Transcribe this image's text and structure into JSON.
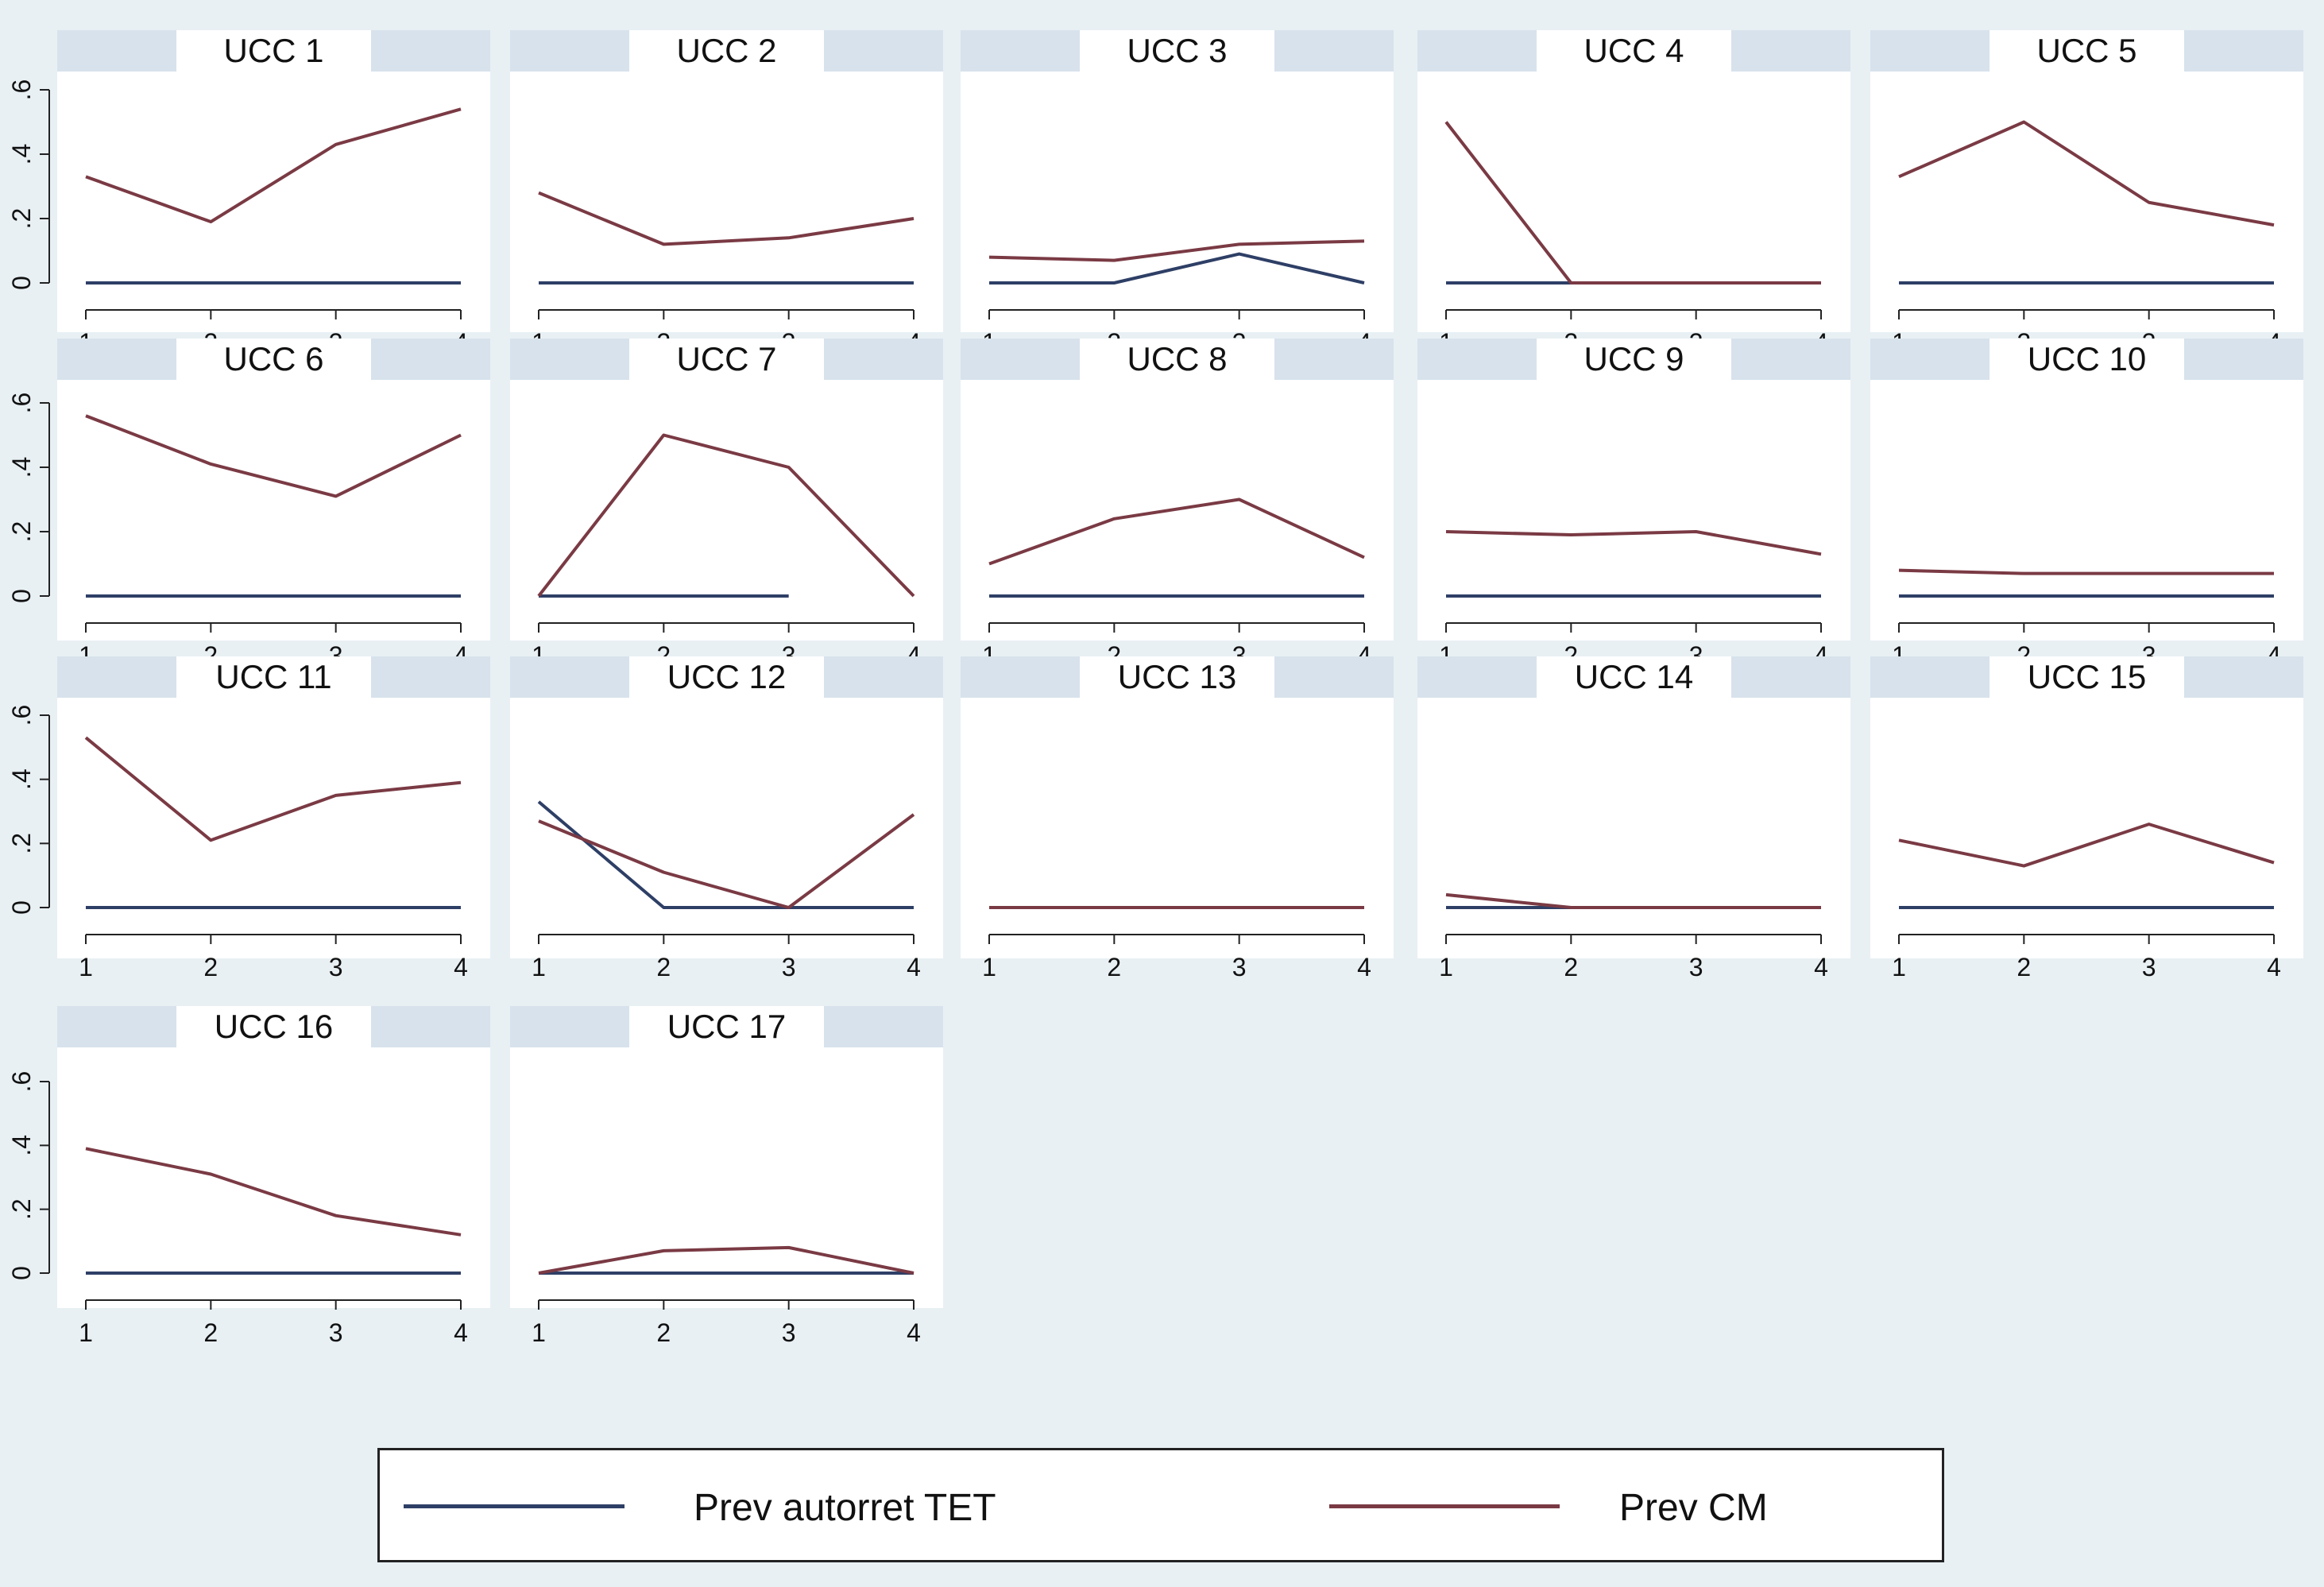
{
  "colors": {
    "background": "#e8f0f4",
    "panel": "#ffffff",
    "strip": "#d7e2ec",
    "tet": "#2e3f66",
    "cm": "#7a3a44",
    "axis": "#222222"
  },
  "legend": {
    "tet_label": "Prev autorret TET",
    "cm_label": "Prev CM"
  },
  "chart_data": {
    "type": "line",
    "layout": "small multiples, 5 columns x 4 rows",
    "x_ticks": [
      1,
      2,
      3,
      4
    ],
    "y_ticks": [
      0,
      0.2,
      0.4,
      0.6
    ],
    "y_tick_labels": [
      "0",
      ".2",
      ".4",
      ".6"
    ],
    "ylim": [
      0,
      0.6
    ],
    "xlim": [
      1,
      4
    ],
    "series_names": [
      "Prev autorret TET",
      "Prev CM"
    ],
    "panels": [
      {
        "title": "UCC 1",
        "tet": [
          0,
          0,
          0,
          0
        ],
        "cm": [
          0.33,
          0.19,
          0.43,
          0.54
        ]
      },
      {
        "title": "UCC 2",
        "tet": [
          0,
          0,
          0,
          0
        ],
        "cm": [
          0.28,
          0.12,
          0.14,
          0.2
        ]
      },
      {
        "title": "UCC 3",
        "tet": [
          0,
          0,
          0.09,
          0
        ],
        "cm": [
          0.08,
          0.07,
          0.12,
          0.13
        ]
      },
      {
        "title": "UCC 4",
        "tet": [
          0,
          0,
          0,
          0
        ],
        "cm": [
          0.5,
          0,
          0,
          0
        ]
      },
      {
        "title": "UCC 5",
        "tet": [
          0,
          0,
          0,
          0
        ],
        "cm": [
          0.33,
          0.5,
          0.25,
          0.18
        ]
      },
      {
        "title": "UCC 6",
        "tet": [
          0,
          0,
          0,
          0
        ],
        "cm": [
          0.56,
          0.41,
          0.31,
          0.5
        ]
      },
      {
        "title": "UCC 7",
        "tet": [
          0,
          0,
          0,
          null
        ],
        "cm": [
          0,
          0.5,
          0.4,
          0
        ]
      },
      {
        "title": "UCC 8",
        "tet": [
          0,
          0,
          0,
          0
        ],
        "cm": [
          0.1,
          0.24,
          0.3,
          0.12
        ]
      },
      {
        "title": "UCC 9",
        "tet": [
          0,
          0,
          0,
          0
        ],
        "cm": [
          0.2,
          0.19,
          0.2,
          0.13
        ]
      },
      {
        "title": "UCC 10",
        "tet": [
          0,
          0,
          0,
          0
        ],
        "cm": [
          0.08,
          0.07,
          0.07,
          0.07
        ]
      },
      {
        "title": "UCC 11",
        "tet": [
          0,
          0,
          0,
          0
        ],
        "cm": [
          0.53,
          0.21,
          0.35,
          0.39
        ]
      },
      {
        "title": "UCC 12",
        "tet": [
          0.33,
          0,
          0,
          0
        ],
        "cm": [
          0.27,
          0.11,
          0,
          0.29
        ]
      },
      {
        "title": "UCC 13",
        "tet": [
          0,
          0,
          0,
          0
        ],
        "cm": [
          0,
          0,
          0,
          0
        ]
      },
      {
        "title": "UCC 14",
        "tet": [
          0,
          0,
          0,
          0
        ],
        "cm": [
          0.04,
          0,
          0,
          0
        ]
      },
      {
        "title": "UCC 15",
        "tet": [
          0,
          0,
          0,
          0
        ],
        "cm": [
          0.21,
          0.13,
          0.26,
          0.14
        ]
      },
      {
        "title": "UCC 16",
        "tet": [
          0,
          0,
          0,
          0
        ],
        "cm": [
          0.39,
          0.31,
          0.18,
          0.12
        ]
      },
      {
        "title": "UCC 17",
        "tet": [
          0,
          0,
          0,
          0
        ],
        "cm": [
          0,
          0.07,
          0.08,
          0
        ]
      }
    ]
  }
}
